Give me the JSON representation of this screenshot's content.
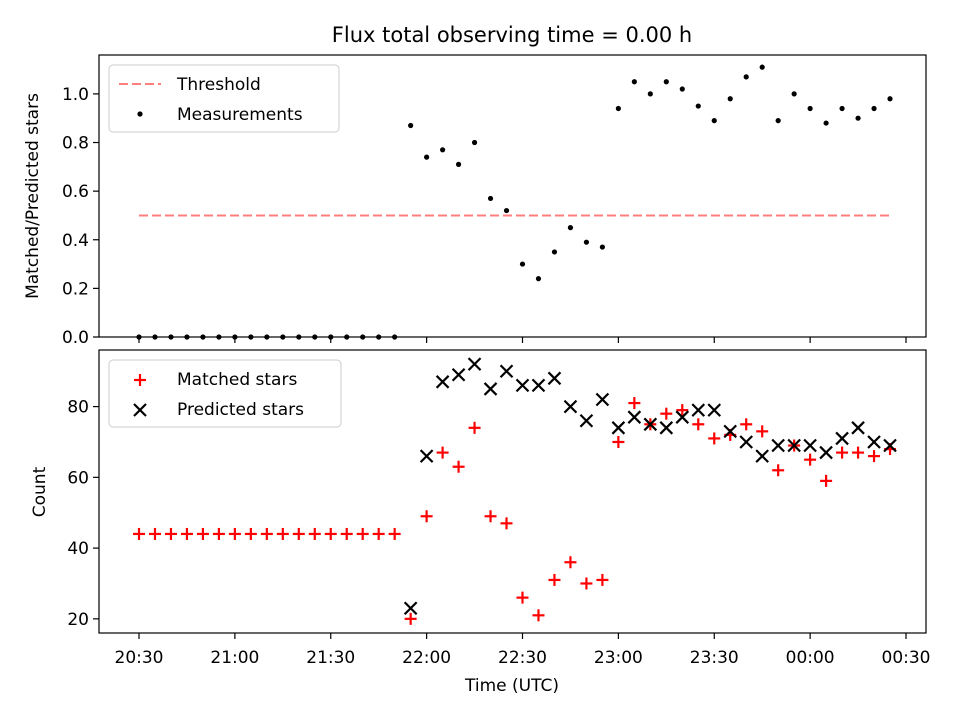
{
  "figure": {
    "title": "Flux total observing time = 0.00 h"
  },
  "chart_data": [
    {
      "type": "scatter",
      "title": "Flux total observing time = 0.00 h",
      "xlabel": "",
      "ylabel": "Matched/Predicted stars",
      "ylim": [
        0.0,
        1.16
      ],
      "yticks": [
        0.0,
        0.2,
        0.4,
        0.6,
        0.8,
        1.0
      ],
      "ytick_labels": [
        "0.0",
        "0.2",
        "0.4",
        "0.6",
        "0.8",
        "1.0"
      ],
      "xlim_minutes_since_midnight_labels": [
        "20:18",
        "00:38"
      ],
      "xtick_labels": [],
      "legend_position": "upper left",
      "grid": false,
      "threshold": {
        "name": "Threshold",
        "value": 0.5,
        "x_start": "20:30",
        "x_end": "00:25",
        "color": "#ff7f7f",
        "style": "dashed"
      },
      "series": [
        {
          "name": "Measurements",
          "marker": "dot",
          "color": "#000000",
          "x": [
            "20:30",
            "20:35",
            "20:40",
            "20:45",
            "20:50",
            "20:55",
            "21:00",
            "21:05",
            "21:10",
            "21:15",
            "21:20",
            "21:25",
            "21:30",
            "21:35",
            "21:40",
            "21:45",
            "21:50",
            "21:55",
            "22:00",
            "22:05",
            "22:10",
            "22:15",
            "22:20",
            "22:25",
            "22:30",
            "22:35",
            "22:40",
            "22:45",
            "22:50",
            "22:55",
            "23:00",
            "23:05",
            "23:10",
            "23:15",
            "23:20",
            "23:25",
            "23:30",
            "23:35",
            "23:40",
            "23:45",
            "23:50",
            "23:55",
            "00:00",
            "00:05",
            "00:10",
            "00:15",
            "00:20",
            "00:25"
          ],
          "values": [
            0.0,
            0.0,
            0.0,
            0.0,
            0.0,
            0.0,
            0.0,
            0.0,
            0.0,
            0.0,
            0.0,
            0.0,
            0.0,
            0.0,
            0.0,
            0.0,
            0.0,
            0.87,
            0.74,
            0.77,
            0.71,
            0.8,
            0.57,
            0.52,
            0.3,
            0.24,
            0.35,
            0.45,
            0.39,
            0.37,
            0.94,
            1.05,
            1.0,
            1.05,
            1.02,
            0.95,
            0.89,
            0.98,
            1.07,
            1.11,
            0.89,
            1.0,
            0.94,
            0.88,
            0.94,
            0.9,
            0.94,
            0.98
          ]
        }
      ]
    },
    {
      "type": "scatter",
      "title": "",
      "xlabel": "Time (UTC)",
      "ylabel": "Count",
      "ylim": [
        16,
        96
      ],
      "yticks": [
        20,
        40,
        60,
        80
      ],
      "ytick_labels": [
        "20",
        "40",
        "60",
        "80"
      ],
      "xtick_labels": [
        "20:30",
        "21:00",
        "21:30",
        "22:00",
        "22:30",
        "23:00",
        "23:30",
        "00:00",
        "00:30"
      ],
      "legend_position": "upper left",
      "grid": false,
      "series": [
        {
          "name": "Matched stars",
          "marker": "plus",
          "color": "#ff0000",
          "x": [
            "20:30",
            "20:35",
            "20:40",
            "20:45",
            "20:50",
            "20:55",
            "21:00",
            "21:05",
            "21:10",
            "21:15",
            "21:20",
            "21:25",
            "21:30",
            "21:35",
            "21:40",
            "21:45",
            "21:50",
            "21:55",
            "22:00",
            "22:05",
            "22:10",
            "22:15",
            "22:20",
            "22:25",
            "22:30",
            "22:35",
            "22:40",
            "22:45",
            "22:50",
            "22:55",
            "23:00",
            "23:05",
            "23:10",
            "23:15",
            "23:20",
            "23:25",
            "23:30",
            "23:35",
            "23:40",
            "23:45",
            "23:50",
            "23:55",
            "00:00",
            "00:05",
            "00:10",
            "00:15",
            "00:20",
            "00:25"
          ],
          "values": [
            44,
            44,
            44,
            44,
            44,
            44,
            44,
            44,
            44,
            44,
            44,
            44,
            44,
            44,
            44,
            44,
            44,
            20,
            49,
            67,
            63,
            74,
            49,
            47,
            26,
            21,
            31,
            36,
            30,
            31,
            70,
            81,
            75,
            78,
            79,
            75,
            71,
            72,
            75,
            73,
            62,
            69,
            65,
            59,
            67,
            67,
            66,
            68
          ]
        },
        {
          "name": "Predicted stars",
          "marker": "x",
          "color": "#000000",
          "x": [
            "21:55",
            "22:00",
            "22:05",
            "22:10",
            "22:15",
            "22:20",
            "22:25",
            "22:30",
            "22:35",
            "22:40",
            "22:45",
            "22:50",
            "22:55",
            "23:00",
            "23:05",
            "23:10",
            "23:15",
            "23:20",
            "23:25",
            "23:30",
            "23:35",
            "23:40",
            "23:45",
            "23:50",
            "23:55",
            "00:00",
            "00:05",
            "00:10",
            "00:15",
            "00:20",
            "00:25"
          ],
          "values": [
            23,
            66,
            87,
            89,
            92,
            85,
            90,
            86,
            86,
            88,
            80,
            76,
            82,
            74,
            77,
            75,
            74,
            77,
            79,
            79,
            73,
            70,
            66,
            69,
            69,
            69,
            67,
            71,
            74,
            70,
            69
          ]
        }
      ]
    }
  ]
}
